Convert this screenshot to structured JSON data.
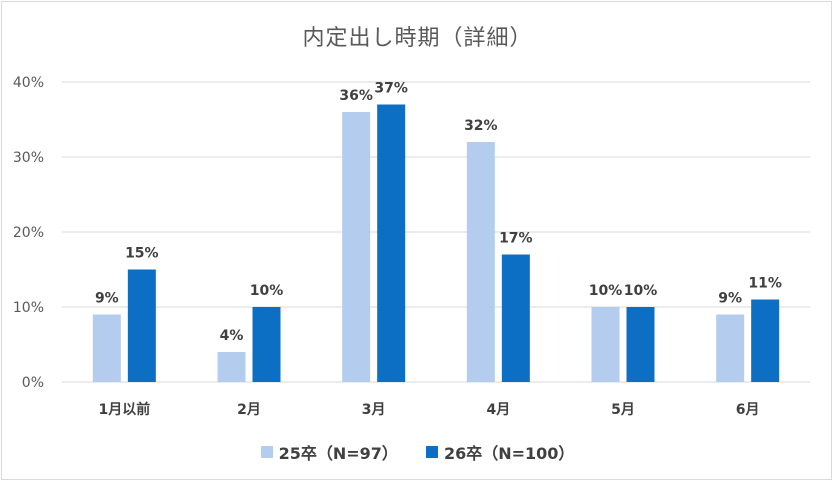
{
  "chart_data": {
    "type": "bar",
    "title": "内定出し時期（詳細）",
    "categories": [
      "1月以前",
      "2月",
      "3月",
      "4月",
      "5月",
      "6月"
    ],
    "series": [
      {
        "name": "25卒（N=97）",
        "values": [
          9,
          4,
          36,
          32,
          10,
          9
        ],
        "color": "#b4cdee"
      },
      {
        "name": "26卒（N=100）",
        "values": [
          15,
          10,
          37,
          17,
          10,
          11
        ],
        "color": "#0c6fc4"
      }
    ],
    "ylim": [
      0,
      40
    ],
    "yticks": [
      "0%",
      "10%",
      "20%",
      "30%",
      "40%"
    ],
    "value_suffix": "%",
    "grid": true,
    "legend_position": "bottom"
  }
}
